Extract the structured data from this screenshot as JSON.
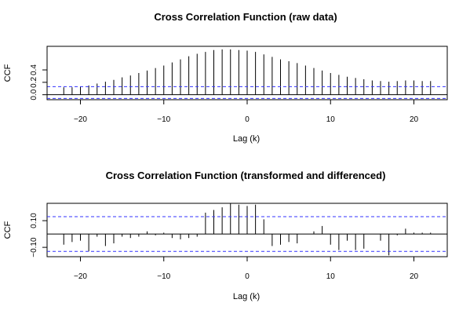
{
  "chart_data": [
    {
      "type": "bar",
      "title": "Cross Correlation Function (raw data)",
      "xlabel": "Lag (k)",
      "ylabel": "CCF",
      "xlim": [
        -24,
        24
      ],
      "ylim": [
        -0.08,
        0.78
      ],
      "xticks": [
        -20,
        -10,
        0,
        10,
        20
      ],
      "yticks": [
        0.0,
        0.2,
        0.4
      ],
      "ytick_labels": [
        "0.0",
        "0.2",
        "0.4"
      ],
      "confidence_band": [
        -0.06,
        0.13
      ],
      "lags": [
        -22,
        -21,
        -20,
        -19,
        -18,
        -17,
        -16,
        -15,
        -14,
        -13,
        -12,
        -11,
        -10,
        -9,
        -8,
        -7,
        -6,
        -5,
        -4,
        -3,
        -2,
        -1,
        0,
        1,
        2,
        3,
        4,
        5,
        6,
        7,
        8,
        9,
        10,
        11,
        12,
        13,
        14,
        15,
        16,
        17,
        18,
        19,
        20,
        21,
        22
      ],
      "values": [
        0.12,
        0.12,
        0.13,
        0.15,
        0.18,
        0.21,
        0.24,
        0.28,
        0.31,
        0.35,
        0.39,
        0.43,
        0.47,
        0.52,
        0.57,
        0.62,
        0.66,
        0.69,
        0.72,
        0.73,
        0.73,
        0.72,
        0.71,
        0.69,
        0.65,
        0.61,
        0.57,
        0.54,
        0.51,
        0.47,
        0.43,
        0.39,
        0.35,
        0.32,
        0.29,
        0.27,
        0.25,
        0.23,
        0.22,
        0.21,
        0.22,
        0.23,
        0.23,
        0.22,
        0.22
      ]
    },
    {
      "type": "bar",
      "title": "Cross Correlation Function (transformed and differenced)",
      "xlabel": "Lag (k)",
      "ylabel": "CCF",
      "xlim": [
        -24,
        24
      ],
      "ylim": [
        -0.17,
        0.23
      ],
      "xticks": [
        -20,
        -10,
        0,
        10,
        20
      ],
      "yticks": [
        -0.1,
        0.1
      ],
      "ytick_labels": [
        "-0.10",
        "0.10"
      ],
      "confidence_band": [
        -0.13,
        0.13
      ],
      "lags": [
        -22,
        -21,
        -20,
        -19,
        -18,
        -17,
        -16,
        -15,
        -14,
        -13,
        -12,
        -11,
        -10,
        -9,
        -8,
        -7,
        -6,
        -5,
        -4,
        -3,
        -2,
        -1,
        0,
        1,
        2,
        3,
        4,
        5,
        6,
        7,
        8,
        9,
        10,
        11,
        12,
        13,
        14,
        15,
        16,
        17,
        18,
        19,
        20,
        21,
        22
      ],
      "values": [
        -0.08,
        -0.06,
        -0.05,
        -0.13,
        -0.02,
        -0.09,
        -0.07,
        -0.02,
        -0.03,
        -0.02,
        0.02,
        -0.01,
        0.01,
        -0.03,
        -0.04,
        -0.03,
        -0.02,
        0.16,
        0.18,
        0.2,
        0.23,
        0.22,
        0.21,
        0.22,
        0.11,
        -0.09,
        -0.08,
        -0.06,
        -0.07,
        0.0,
        0.02,
        0.06,
        -0.08,
        -0.12,
        -0.05,
        -0.12,
        -0.11,
        0.0,
        -0.05,
        -0.16,
        -0.01,
        0.04,
        0.01,
        0.01,
        0.01
      ]
    }
  ]
}
